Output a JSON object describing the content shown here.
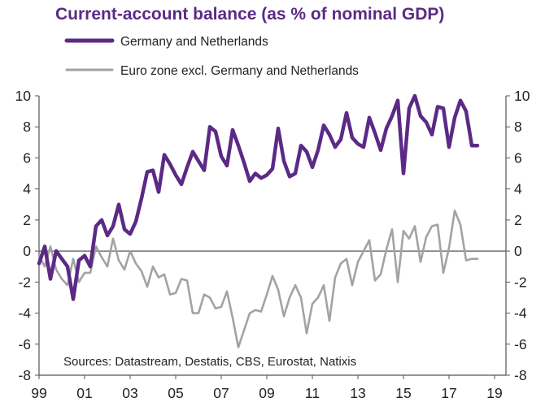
{
  "chart_data": {
    "type": "line",
    "title": "Current-account balance (as % of nominal GDP)",
    "source_note": "Sources: Datastream, Destatis, CBS, Eurostat, Natixis",
    "x_tick_labels": [
      "99",
      "01",
      "03",
      "05",
      "07",
      "09",
      "11",
      "13",
      "15",
      "17",
      "19"
    ],
    "y_ticks": [
      -8,
      -6,
      -4,
      -2,
      0,
      2,
      4,
      6,
      8,
      10
    ],
    "ylim": [
      -8,
      10
    ],
    "xlim": [
      1999.0,
      2019.5
    ],
    "dual_y_axis": true,
    "zero_line": true,
    "grid": false,
    "legend_position": "top-left",
    "colors": {
      "germany_netherlands": "#5b2a86",
      "euro_zone_ex": "#a3a3a3",
      "title": "#5b2a86",
      "axis": "#555555"
    },
    "series": [
      {
        "name": "Germany and Netherlands",
        "style": "thick",
        "x": [
          1999.0,
          1999.25,
          1999.5,
          1999.75,
          2000.0,
          2000.25,
          2000.5,
          2000.75,
          2001.0,
          2001.25,
          2001.5,
          2001.75,
          2002.0,
          2002.25,
          2002.5,
          2002.75,
          2003.0,
          2003.25,
          2003.5,
          2003.75,
          2004.0,
          2004.25,
          2004.5,
          2004.75,
          2005.0,
          2005.25,
          2005.5,
          2005.75,
          2006.0,
          2006.25,
          2006.5,
          2006.75,
          2007.0,
          2007.25,
          2007.5,
          2007.75,
          2008.0,
          2008.25,
          2008.5,
          2008.75,
          2009.0,
          2009.25,
          2009.5,
          2009.75,
          2010.0,
          2010.25,
          2010.5,
          2010.75,
          2011.0,
          2011.25,
          2011.5,
          2011.75,
          2012.0,
          2012.25,
          2012.5,
          2012.75,
          2013.0,
          2013.25,
          2013.5,
          2013.75,
          2014.0,
          2014.25,
          2014.5,
          2014.75,
          2015.0,
          2015.25,
          2015.5,
          2015.75,
          2016.0,
          2016.25,
          2016.5,
          2016.75,
          2017.0,
          2017.25,
          2017.5,
          2017.75,
          2018.0,
          2018.25
        ],
        "values": [
          -0.8,
          0.3,
          -1.8,
          0.0,
          -0.5,
          -1.0,
          -3.1,
          -0.6,
          -0.3,
          -1.0,
          1.6,
          2.0,
          1.0,
          1.6,
          3.0,
          1.4,
          1.1,
          1.9,
          3.4,
          5.1,
          5.2,
          3.8,
          6.2,
          5.6,
          4.9,
          4.3,
          5.4,
          6.4,
          5.8,
          5.2,
          8.0,
          7.7,
          6.1,
          5.5,
          7.8,
          6.8,
          5.7,
          4.5,
          5.0,
          4.7,
          4.9,
          5.3,
          7.9,
          5.8,
          4.8,
          5.0,
          6.8,
          6.4,
          5.4,
          6.5,
          8.1,
          7.5,
          6.7,
          7.2,
          8.9,
          7.3,
          6.9,
          6.7,
          8.6,
          7.6,
          6.5,
          7.9,
          8.7,
          9.7,
          5.0,
          9.2,
          10.0,
          8.7,
          8.3,
          7.5,
          9.3,
          9.2,
          6.7,
          8.6,
          9.7,
          9.0,
          6.8,
          6.8
        ]
      },
      {
        "name": "Euro zone excl. Germany and Netherlands",
        "style": "thin",
        "x": [
          1999.0,
          1999.25,
          1999.5,
          1999.75,
          2000.0,
          2000.25,
          2000.5,
          2000.75,
          2001.0,
          2001.25,
          2001.5,
          2001.75,
          2002.0,
          2002.25,
          2002.5,
          2002.75,
          2003.0,
          2003.25,
          2003.5,
          2003.75,
          2004.0,
          2004.25,
          2004.5,
          2004.75,
          2005.0,
          2005.25,
          2005.5,
          2005.75,
          2006.0,
          2006.25,
          2006.5,
          2006.75,
          2007.0,
          2007.25,
          2007.5,
          2007.75,
          2008.0,
          2008.25,
          2008.5,
          2008.75,
          2009.0,
          2009.25,
          2009.5,
          2009.75,
          2010.0,
          2010.25,
          2010.5,
          2010.75,
          2011.0,
          2011.25,
          2011.5,
          2011.75,
          2012.0,
          2012.25,
          2012.5,
          2012.75,
          2013.0,
          2013.25,
          2013.5,
          2013.75,
          2014.0,
          2014.25,
          2014.5,
          2014.75,
          2015.0,
          2015.25,
          2015.5,
          2015.75,
          2016.0,
          2016.25,
          2016.5,
          2016.75,
          2017.0,
          2017.25,
          2017.5,
          2017.75,
          2018.0,
          2018.25
        ],
        "values": [
          -0.3,
          -1.0,
          0.3,
          -1.2,
          -1.8,
          -2.2,
          -0.5,
          -2.0,
          -1.4,
          -1.4,
          0.3,
          -0.4,
          -1.0,
          0.8,
          -0.6,
          -1.2,
          0.0,
          -0.8,
          -1.3,
          -2.3,
          -1.0,
          -1.7,
          -1.5,
          -2.8,
          -2.7,
          -1.8,
          -1.9,
          -4.0,
          -4.0,
          -2.8,
          -3.0,
          -3.7,
          -3.6,
          -2.6,
          -4.3,
          -6.2,
          -5.1,
          -4.0,
          -3.8,
          -3.9,
          -2.8,
          -1.6,
          -2.5,
          -4.2,
          -3.0,
          -2.2,
          -3.0,
          -5.3,
          -3.4,
          -3.0,
          -2.2,
          -4.5,
          -1.7,
          -0.8,
          -0.5,
          -2.2,
          -0.7,
          0.0,
          0.7,
          -1.9,
          -1.5,
          0.1,
          1.4,
          -2.0,
          1.3,
          0.8,
          1.6,
          -0.7,
          0.9,
          1.6,
          1.7,
          -1.4,
          0.2,
          2.6,
          1.7,
          -0.6,
          -0.5,
          -0.5
        ]
      }
    ]
  }
}
